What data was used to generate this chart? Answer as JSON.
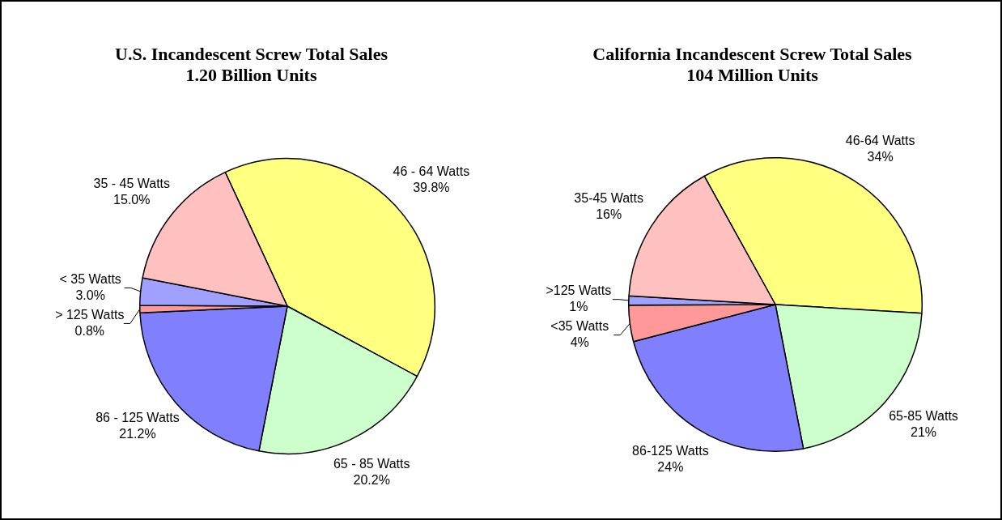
{
  "chart_data": [
    {
      "type": "pie",
      "title": "U.S. Incandescent Screw Total Sales",
      "subtitle": "1.20 Billion Units",
      "categories": [
        "46 - 64 Watts",
        "65 - 85 Watts",
        "86 - 125 Watts",
        "> 125 Watts",
        "< 35 Watts",
        "35 - 45 Watts"
      ],
      "values": [
        39.8,
        20.2,
        21.2,
        0.8,
        3.0,
        15.0
      ],
      "value_labels": [
        "39.8%",
        "20.2%",
        "21.2%",
        "0.8%",
        "3.0%",
        "15.0%"
      ],
      "colors": [
        "#ffff80",
        "#ccffcc",
        "#8080ff",
        "#ff9999",
        "#a0a0ff",
        "#ffc0c0"
      ],
      "legend": false
    },
    {
      "type": "pie",
      "title": "California Incandescent Screw Total Sales",
      "subtitle": "104 Million Units",
      "categories": [
        "46-64 Watts",
        "65-85 Watts",
        "86-125 Watts",
        "<35 Watts",
        ">125 Watts",
        "35-45 Watts"
      ],
      "values": [
        34,
        21,
        24,
        4,
        1,
        16
      ],
      "value_labels": [
        "34%",
        "21%",
        "24%",
        "4%",
        "1%",
        "16%"
      ],
      "colors": [
        "#ffff80",
        "#ccffcc",
        "#8080ff",
        "#ff9999",
        "#a0a0ff",
        "#ffc0c0"
      ],
      "legend": false
    }
  ]
}
